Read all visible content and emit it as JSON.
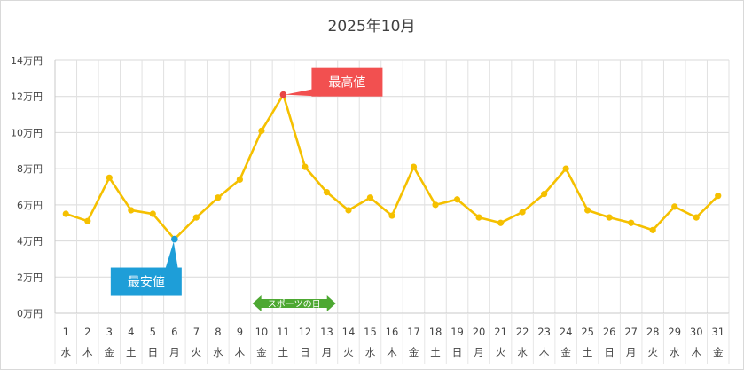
{
  "chart_data": {
    "type": "line",
    "title": "2025年10月",
    "y_ticks": [
      "0万円",
      "2万円",
      "4万円",
      "6万円",
      "8万円",
      "10万円",
      "12万円",
      "14万円"
    ],
    "ylim": [
      0,
      140000
    ],
    "categories": [
      "1",
      "2",
      "3",
      "4",
      "5",
      "6",
      "7",
      "8",
      "9",
      "10",
      "11",
      "12",
      "13",
      "14",
      "15",
      "16",
      "17",
      "18",
      "19",
      "20",
      "21",
      "22",
      "23",
      "24",
      "25",
      "26",
      "27",
      "28",
      "29",
      "30",
      "31"
    ],
    "weekdays": [
      "水",
      "木",
      "金",
      "土",
      "日",
      "月",
      "火",
      "水",
      "木",
      "金",
      "土",
      "日",
      "月",
      "火",
      "水",
      "木",
      "金",
      "土",
      "日",
      "月",
      "火",
      "水",
      "木",
      "金",
      "土",
      "日",
      "月",
      "火",
      "水",
      "木",
      "金"
    ],
    "series": [
      {
        "values": [
          55000,
          51000,
          75000,
          57000,
          55000,
          41000,
          53000,
          64000,
          74000,
          101000,
          121000,
          81000,
          67000,
          57000,
          64000,
          54000,
          81000,
          60000,
          63000,
          53000,
          50000,
          56000,
          66000,
          80000,
          57000,
          53000,
          50000,
          46000,
          59000,
          53000,
          65000
        ],
        "color": "#F5C000"
      }
    ],
    "annotations": [
      {
        "label": "最高値",
        "category": "11",
        "color": "#F25050",
        "point_color": "#E84545"
      },
      {
        "label": "最安値",
        "category": "6",
        "color": "#1E9ED8",
        "point_color": "#1E9ED8"
      }
    ],
    "holiday": {
      "label": "スポーツの日",
      "from": "10",
      "to": "14",
      "color": "#4DA832"
    },
    "grid": true,
    "legend": "none"
  }
}
